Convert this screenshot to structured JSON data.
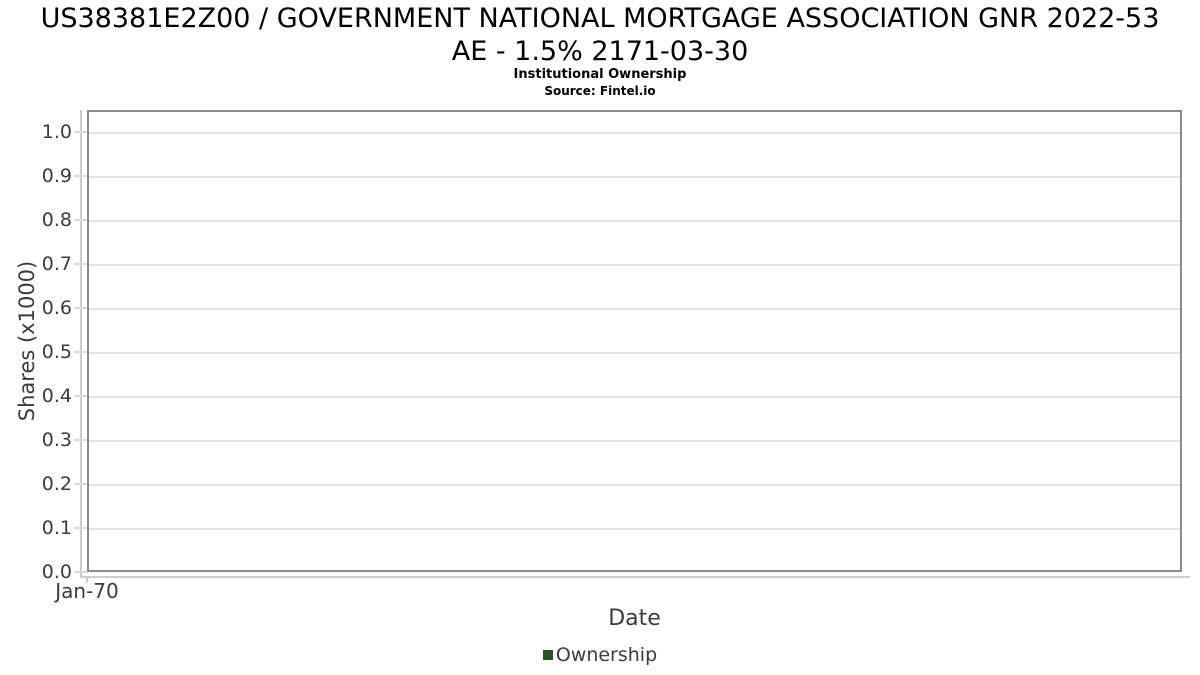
{
  "header": {
    "title_line1": "US38381E2Z00 / GOVERNMENT NATIONAL MORTGAGE ASSOCIATION GNR 2022-53",
    "title_line2": "AE - 1.5% 2171-03-30",
    "subtitle": "Institutional Ownership",
    "source": "Source: Fintel.io"
  },
  "chart_data": {
    "type": "line",
    "title": "US38381E2Z00 / GOVERNMENT NATIONAL MORTGAGE ASSOCIATION GNR 2022-53 AE - 1.5% 2171-03-30",
    "subtitle": "Institutional Ownership",
    "source": "Source: Fintel.io",
    "xlabel": "Date",
    "ylabel": "Shares (x1000)",
    "x_tick_labels": [
      "Jan-70"
    ],
    "y_tick_labels": [
      "0.0",
      "0.1",
      "0.2",
      "0.3",
      "0.4",
      "0.5",
      "0.6",
      "0.7",
      "0.8",
      "0.9",
      "1.0"
    ],
    "ylim": [
      0.0,
      1.05
    ],
    "grid": "horizontal-only",
    "legend_position": "bottom-center",
    "series": [
      {
        "name": "Ownership",
        "color": "#275427",
        "points": []
      }
    ]
  },
  "colors": {
    "title_text": "#000000",
    "axis_text": "#3c3c3c",
    "plot_border": "#8a8a8a",
    "gridline": "#e4e4e4",
    "axis_line": "#cccccc",
    "legend_marker": "#275427",
    "background": "#ffffff"
  }
}
